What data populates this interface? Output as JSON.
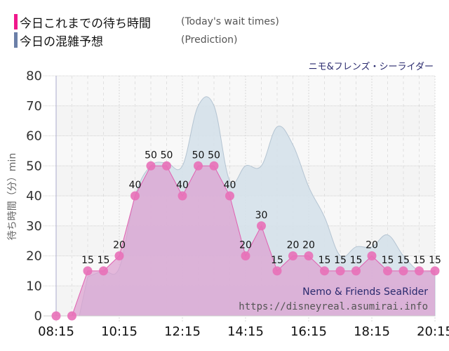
{
  "legend": [
    {
      "label_jp": "今日これまでの待ち時間",
      "label_en": "(Today's wait times)",
      "color": "#f0188c"
    },
    {
      "label_jp": "今日の混雑予想",
      "label_en": "(Prediction)",
      "color": "#6b7fa8"
    }
  ],
  "ride_title": "ニモ&フレンズ・シーライダー",
  "watermark": {
    "name": "Nemo & Friends SeaRider",
    "url": "https://disneyreal.asumirai.info"
  },
  "chart_data": {
    "type": "area",
    "title": "ニモ&フレンズ・シーライダー",
    "xlabel": "",
    "ylabel": "待ち時間（分）min",
    "ylim": [
      0,
      80
    ],
    "yticks": [
      0,
      10,
      20,
      30,
      40,
      50,
      60,
      70,
      80
    ],
    "xtick_labels": [
      "08:15",
      "10:15",
      "12:15",
      "14:15",
      "16:15",
      "18:15",
      "20:15"
    ],
    "grid": true,
    "x": [
      "08:15",
      "08:45",
      "09:15",
      "09:45",
      "10:15",
      "10:45",
      "11:15",
      "11:45",
      "12:15",
      "12:45",
      "13:15",
      "13:45",
      "14:15",
      "14:45",
      "15:15",
      "15:45",
      "16:15",
      "16:45",
      "17:15",
      "17:45",
      "18:15",
      "18:45",
      "19:15",
      "19:45",
      "20:15"
    ],
    "series": [
      {
        "name": "今日これまでの待ち時間 (Today's wait times)",
        "color": "#e86bb4",
        "values": [
          0,
          0,
          15,
          15,
          20,
          40,
          50,
          50,
          40,
          50,
          50,
          40,
          20,
          30,
          15,
          20,
          20,
          15,
          15,
          15,
          20,
          15,
          15,
          15,
          15
        ]
      },
      {
        "name": "今日の混雑予想 (Prediction)",
        "color": "#b8cbdc",
        "values": [
          null,
          null,
          13,
          15,
          16,
          40,
          50,
          51,
          50,
          70,
          70,
          45,
          50,
          50,
          63,
          57,
          43,
          33,
          20,
          23,
          23,
          27,
          20,
          15,
          15
        ]
      }
    ]
  }
}
